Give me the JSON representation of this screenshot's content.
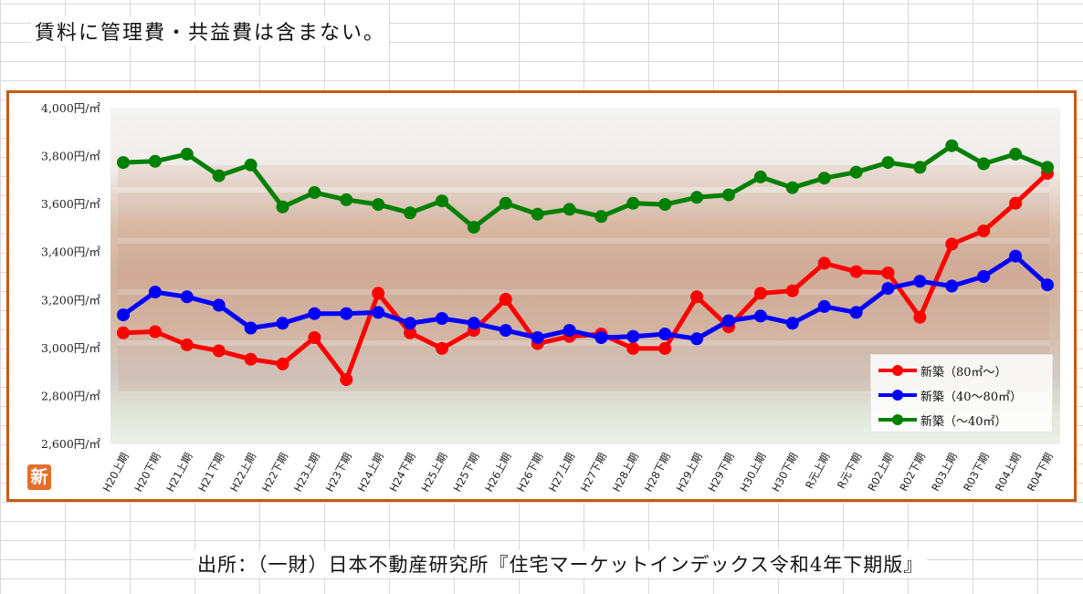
{
  "note": "賃料に管理費・共益費は含まない。",
  "source": "出所：（一財）日本不動産研究所『住宅マーケットインデックス令和4年下期版』",
  "badge": "新",
  "chart_data": {
    "type": "line",
    "categories": [
      "H20上期",
      "H20下期",
      "H21上期",
      "H21下期",
      "H22上期",
      "H22下期",
      "H23上期",
      "H23下期",
      "H24上期",
      "H24下期",
      "H25上期",
      "H25下期",
      "H26上期",
      "H26下期",
      "H27上期",
      "H27下期",
      "H28上期",
      "H28下期",
      "H29上期",
      "H29下期",
      "H30上期",
      "H30下期",
      "R元上期",
      "R元下期",
      "R02上期",
      "R02下期",
      "R03上期",
      "R03下期",
      "R04上期",
      "R04下期"
    ],
    "ylim": [
      2600,
      4000
    ],
    "yticks": [
      4000,
      3800,
      3600,
      3400,
      3200,
      3000,
      2800,
      2600
    ],
    "ytick_labels": [
      "4,000円/㎡",
      "3,800円/㎡",
      "3,600円/㎡",
      "3,400円/㎡",
      "3,200円/㎡",
      "3,000円/㎡",
      "2,800円/㎡",
      "2,600円/㎡"
    ],
    "series": [
      {
        "name": "新築（80㎡～）",
        "color": "#ff0000",
        "values": [
          3065,
          3070,
          3015,
          2990,
          2955,
          2935,
          3045,
          2870,
          3230,
          3065,
          3000,
          3075,
          3205,
          3020,
          3050,
          3060,
          3000,
          3000,
          3215,
          3090,
          3230,
          3240,
          3355,
          3320,
          3315,
          3130,
          3435,
          3490,
          3605,
          3730
        ]
      },
      {
        "name": "新築（40～80㎡）",
        "color": "#0000ff",
        "values": [
          3140,
          3235,
          3215,
          3180,
          3085,
          3105,
          3145,
          3145,
          3150,
          3105,
          3125,
          3105,
          3075,
          3045,
          3075,
          3045,
          3050,
          3060,
          3040,
          3115,
          3135,
          3105,
          3175,
          3150,
          3250,
          3280,
          3260,
          3300,
          3385,
          3265
        ]
      },
      {
        "name": "新築（～40㎡）",
        "color": "#008000",
        "values": [
          3775,
          3780,
          3810,
          3720,
          3765,
          3590,
          3650,
          3620,
          3600,
          3565,
          3615,
          3505,
          3605,
          3560,
          3580,
          3550,
          3605,
          3600,
          3630,
          3640,
          3715,
          3670,
          3710,
          3735,
          3775,
          3755,
          3845,
          3770,
          3810,
          3755
        ]
      }
    ],
    "legend_position": "bottom-right",
    "grid": false
  }
}
